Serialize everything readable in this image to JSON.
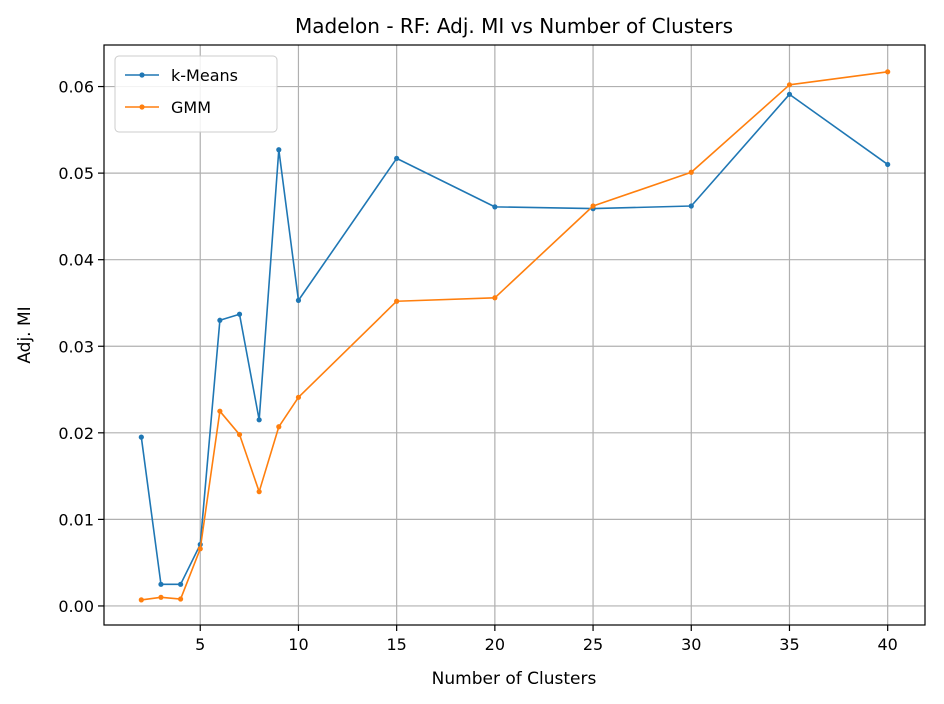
{
  "chart_data": {
    "type": "line",
    "title": "Madelon - RF: Adj. MI vs Number of Clusters",
    "xlabel": "Number of Clusters",
    "ylabel": "Adj. MI",
    "xlim": [
      0.1,
      41.9
    ],
    "ylim": [
      -0.0022,
      0.0648
    ],
    "xticks": [
      5,
      10,
      15,
      20,
      25,
      30,
      35,
      40
    ],
    "xtick_labels": [
      "5",
      "10",
      "15",
      "20",
      "25",
      "30",
      "35",
      "40"
    ],
    "yticks": [
      0.0,
      0.01,
      0.02,
      0.03,
      0.04,
      0.05,
      0.06
    ],
    "ytick_labels": [
      "0.00",
      "0.01",
      "0.02",
      "0.03",
      "0.04",
      "0.05",
      "0.06"
    ],
    "grid": true,
    "legend_position": "top-left",
    "x": [
      2,
      3,
      4,
      5,
      6,
      7,
      8,
      9,
      10,
      15,
      20,
      25,
      30,
      35,
      40
    ],
    "series": [
      {
        "name": "k-Means",
        "color": "#1f77b4",
        "values": [
          0.0195,
          0.0025,
          0.0025,
          0.0071,
          0.033,
          0.0337,
          0.0215,
          0.0527,
          0.0353,
          0.0517,
          0.0461,
          0.0459,
          0.0462,
          0.0591,
          0.051
        ]
      },
      {
        "name": "GMM",
        "color": "#ff7f0e",
        "values": [
          0.0007,
          0.001,
          0.0008,
          0.0066,
          0.0225,
          0.0198,
          0.0132,
          0.0207,
          0.0241,
          0.0352,
          0.0356,
          0.0462,
          0.0501,
          0.0602,
          0.0617
        ]
      }
    ]
  }
}
